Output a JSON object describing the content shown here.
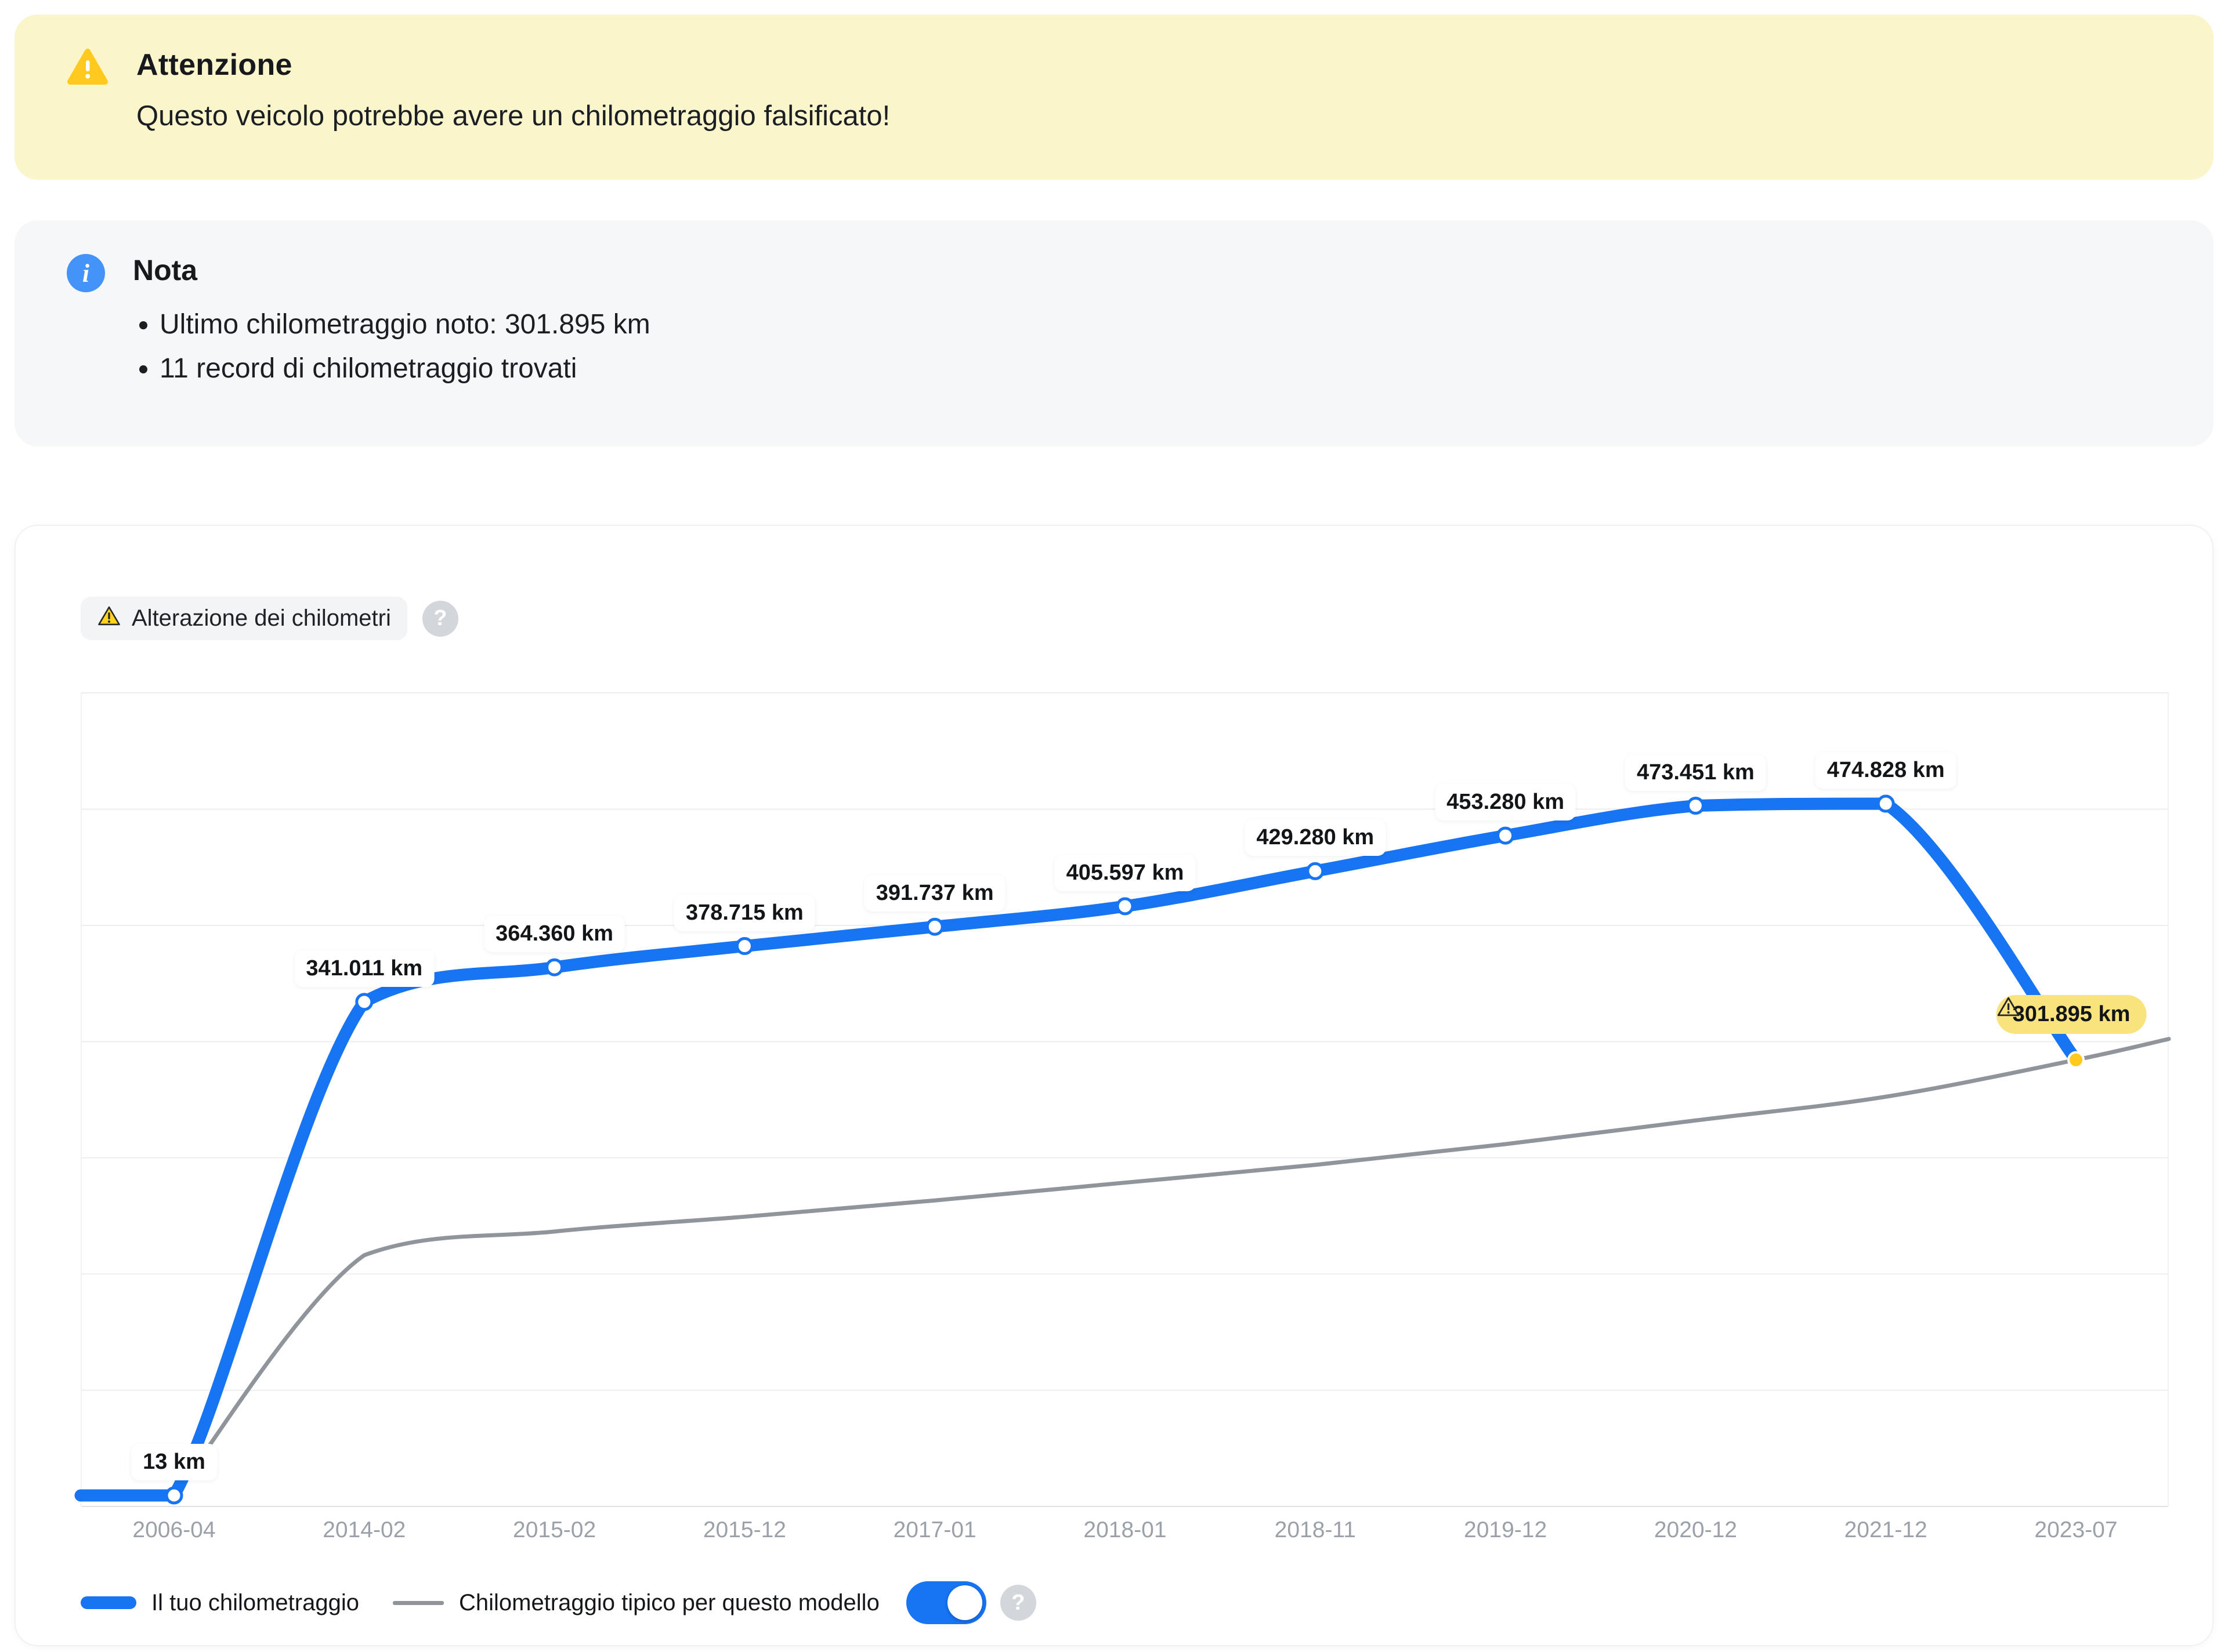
{
  "banner": {
    "title": "Attenzione",
    "message": "Questo veicolo potrebbe avere un chilometraggio falsificato!"
  },
  "note": {
    "icon_glyph": "i",
    "title": "Nota",
    "bullets": [
      "Ultimo chilometraggio noto: 301.895 km",
      "11 record di chilometraggio trovati"
    ]
  },
  "chart_header": {
    "badge_label": "Alterazione dei chilometri",
    "help_glyph": "?"
  },
  "legend": {
    "series1": "Il tuo chilometraggio",
    "series2": "Chilometraggio tipico per questo modello",
    "toggle_on": true,
    "help_glyph": "?"
  },
  "colors": {
    "accent_blue": "#1774F3",
    "typical_gray": "#8F959B",
    "warning_yellow": "#FFC91E",
    "badge_yellow": "#F9E37C",
    "banner_bg": "#FBF5CC",
    "note_bg": "#F6F7F9"
  },
  "chart_data": {
    "type": "line",
    "categories": [
      "2006-04",
      "2014-02",
      "2015-02",
      "2015-12",
      "2017-01",
      "2018-01",
      "2018-11",
      "2019-12",
      "2020-12",
      "2021-12",
      "2023-07"
    ],
    "ylim": [
      0,
      550000
    ],
    "grid": "horizontal",
    "legend_position": "bottom",
    "series": [
      {
        "name": "Il tuo chilometraggio",
        "color_key": "accent_blue",
        "values": [
          13,
          341011,
          364360,
          378715,
          391737,
          405597,
          429280,
          453280,
          473451,
          474828,
          301895
        ],
        "point_labels": [
          "13 km",
          "341.011 km",
          "364.360 km",
          "378.715 km",
          "391.737 km",
          "405.597 km",
          "429.280 km",
          "453.280 km",
          "473.451 km",
          "474.828 km",
          "301.895 km"
        ],
        "extend_left": true
      },
      {
        "name": "Chilometraggio tipico per questo modello",
        "color_key": "typical_gray",
        "values": [
          0,
          170000,
          186000,
          196000,
          207000,
          219000,
          231000,
          245000,
          261000,
          277000,
          301895
        ],
        "right_edge_value": 316000
      }
    ],
    "annotation": {
      "index": 10,
      "label": "301.895 km",
      "type": "warning"
    }
  }
}
